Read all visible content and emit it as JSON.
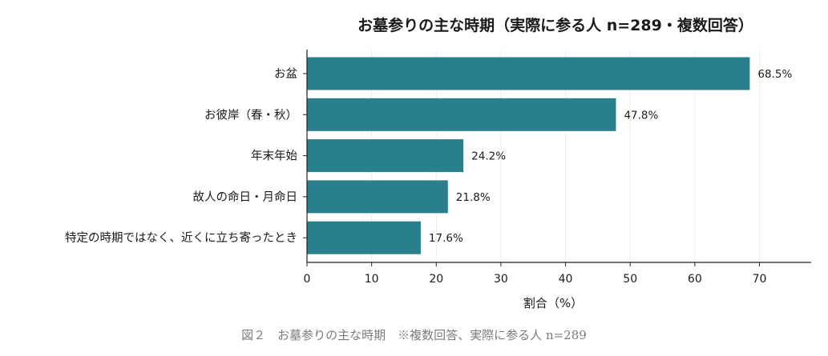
{
  "chart_data": {
    "type": "bar",
    "orientation": "horizontal",
    "title": "お墓参りの主な時期（実際に参る人 n=289・複数回答）",
    "xlabel": "割合（%）",
    "ylabel": "",
    "xlim": [
      0,
      78
    ],
    "x_ticks": [
      0,
      10,
      20,
      30,
      40,
      50,
      60,
      70
    ],
    "grid": "vertical",
    "categories": [
      "お盆",
      "お彼岸（春・秋）",
      "年末年始",
      "故人の命日・月命日",
      "特定の時期ではなく、近くに立ち寄ったとき"
    ],
    "values": [
      68.5,
      47.8,
      24.2,
      21.8,
      17.6
    ],
    "value_labels": [
      "68.5%",
      "47.8%",
      "24.2%",
      "21.8%",
      "17.6%"
    ],
    "bar_color": "#2a7f8e"
  },
  "caption": "図２　お墓参りの主な時期　※複数回答、実際に参る人 n=289"
}
